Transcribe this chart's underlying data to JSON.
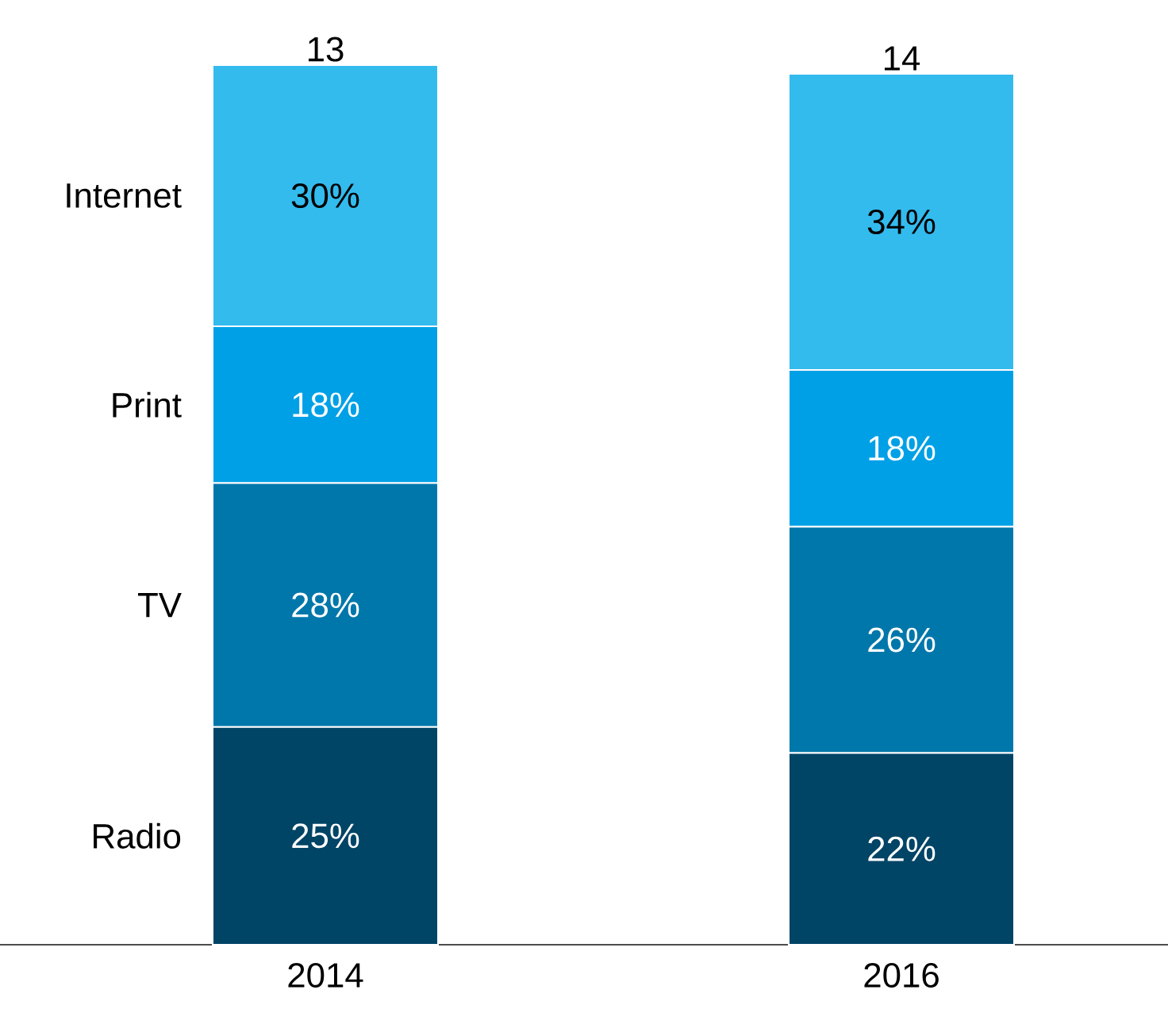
{
  "chart_data": {
    "type": "bar",
    "stacked": true,
    "categories": [
      "2014",
      "2016"
    ],
    "series": [
      {
        "name": "Radio",
        "color": "#004466",
        "values": [
          25,
          22
        ],
        "value_labels": [
          "25%",
          "22%"
        ]
      },
      {
        "name": "TV",
        "color": "#0077aa",
        "values": [
          28,
          26
        ],
        "value_labels": [
          "28%",
          "26%"
        ]
      },
      {
        "name": "Print",
        "color": "#00a0e6",
        "values": [
          18,
          18
        ],
        "value_labels": [
          "18%",
          "18%"
        ]
      },
      {
        "name": "Internet",
        "color": "#33bbee",
        "values": [
          30,
          34
        ],
        "value_labels": [
          "30%",
          "34%"
        ]
      }
    ],
    "annotations": [
      "13",
      "14"
    ],
    "tick_labels": "x"
  }
}
